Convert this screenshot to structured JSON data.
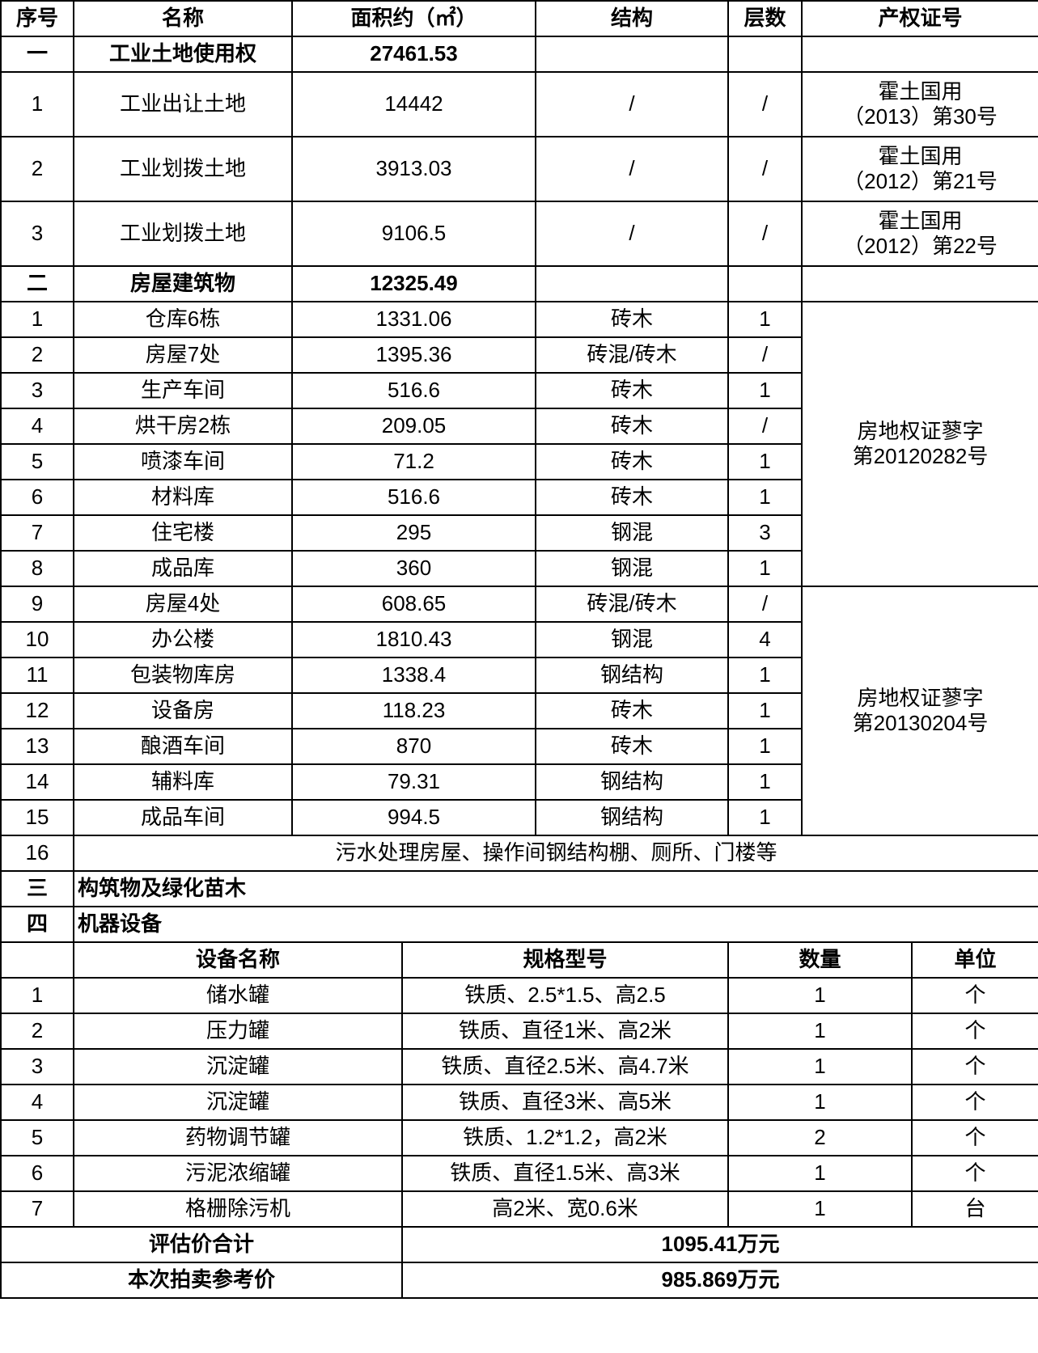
{
  "header": [
    "序号",
    "名称",
    "面积约（㎡）",
    "结构",
    "层数",
    "产权证号"
  ],
  "section_land": {
    "index": "一",
    "name": "工业土地使用权",
    "area": "27461.53"
  },
  "land_rows": [
    {
      "index": "1",
      "name": "工业出让土地",
      "area": "14442",
      "structure": "/",
      "floors": "/",
      "cert": [
        "霍土国用",
        "（2013）第30号"
      ]
    },
    {
      "index": "2",
      "name": "工业划拨土地",
      "area": "3913.03",
      "structure": "/",
      "floors": "/",
      "cert": [
        "霍土国用",
        "（2012）第21号"
      ]
    },
    {
      "index": "3",
      "name": "工业划拨土地",
      "area": "9106.5",
      "structure": "/",
      "floors": "/",
      "cert": [
        "霍土国用",
        "（2012）第22号"
      ]
    }
  ],
  "section_buildings": {
    "index": "二",
    "name": "房屋建筑物",
    "area": "12325.49"
  },
  "building_groups": [
    {
      "cert": [
        "房地权证蓼字",
        "第20120282号"
      ],
      "rows": [
        {
          "index": "1",
          "name": "仓库6栋",
          "area": "1331.06",
          "structure": "砖木",
          "floors": "1"
        },
        {
          "index": "2",
          "name": "房屋7处",
          "area": "1395.36",
          "structure": "砖混/砖木",
          "floors": "/"
        },
        {
          "index": "3",
          "name": "生产车间",
          "area": "516.6",
          "structure": "砖木",
          "floors": "1"
        },
        {
          "index": "4",
          "name": "烘干房2栋",
          "area": "209.05",
          "structure": "砖木",
          "floors": "/"
        },
        {
          "index": "5",
          "name": "喷漆车间",
          "area": "71.2",
          "structure": "砖木",
          "floors": "1"
        },
        {
          "index": "6",
          "name": "材料库",
          "area": "516.6",
          "structure": "砖木",
          "floors": "1"
        },
        {
          "index": "7",
          "name": "住宅楼",
          "area": "295",
          "structure": "钢混",
          "floors": "3"
        },
        {
          "index": "8",
          "name": "成品库",
          "area": "360",
          "structure": "钢混",
          "floors": "1"
        }
      ]
    },
    {
      "cert": [
        "房地权证蓼字",
        "第20130204号"
      ],
      "rows": [
        {
          "index": "9",
          "name": "房屋4处",
          "area": "608.65",
          "structure": "砖混/砖木",
          "floors": "/"
        },
        {
          "index": "10",
          "name": "办公楼",
          "area": "1810.43",
          "structure": "钢混",
          "floors": "4"
        },
        {
          "index": "11",
          "name": "包装物库房",
          "area": "1338.4",
          "structure": "钢结构",
          "floors": "1"
        },
        {
          "index": "12",
          "name": "设备房",
          "area": "118.23",
          "structure": "砖木",
          "floors": "1"
        },
        {
          "index": "13",
          "name": "酿酒车间",
          "area": "870",
          "structure": "砖木",
          "floors": "1"
        },
        {
          "index": "14",
          "name": "辅料库",
          "area": "79.31",
          "structure": "钢结构",
          "floors": "1"
        },
        {
          "index": "15",
          "name": "成品车间",
          "area": "994.5",
          "structure": "钢结构",
          "floors": "1"
        }
      ]
    }
  ],
  "building_other": {
    "index": "16",
    "text": "污水处理房屋、操作间钢结构棚、厕所、门楼等"
  },
  "section_structures": {
    "index": "三",
    "name": "构筑物及绿化苗木"
  },
  "section_equipment": {
    "index": "四",
    "name": "机器设备"
  },
  "equipment_header": [
    "",
    "设备名称",
    "规格型号",
    "数量",
    "单位"
  ],
  "equipment_rows": [
    {
      "index": "1",
      "name": "储水罐",
      "spec": "铁质、2.5*1.5、高2.5",
      "qty": "1",
      "unit": "个"
    },
    {
      "index": "2",
      "name": "压力罐",
      "spec": "铁质、直径1米、高2米",
      "qty": "1",
      "unit": "个"
    },
    {
      "index": "3",
      "name": "沉淀罐",
      "spec": "铁质、直径2.5米、高4.7米",
      "qty": "1",
      "unit": "个"
    },
    {
      "index": "4",
      "name": "沉淀罐",
      "spec": "铁质、直径3米、高5米",
      "qty": "1",
      "unit": "个"
    },
    {
      "index": "5",
      "name": "药物调节罐",
      "spec": "铁质、1.2*1.2，高2米",
      "qty": "2",
      "unit": "个"
    },
    {
      "index": "6",
      "name": "污泥浓缩罐",
      "spec": "铁质、直径1.5米、高3米",
      "qty": "1",
      "unit": "个"
    },
    {
      "index": "7",
      "name": "格栅除污机",
      "spec": "高2米、宽0.6米",
      "qty": "1",
      "unit": "台"
    }
  ],
  "totals": [
    {
      "label": "评估价合计",
      "value": "1095.41万元"
    },
    {
      "label": "本次拍卖参考价",
      "value": "985.869万元"
    }
  ]
}
